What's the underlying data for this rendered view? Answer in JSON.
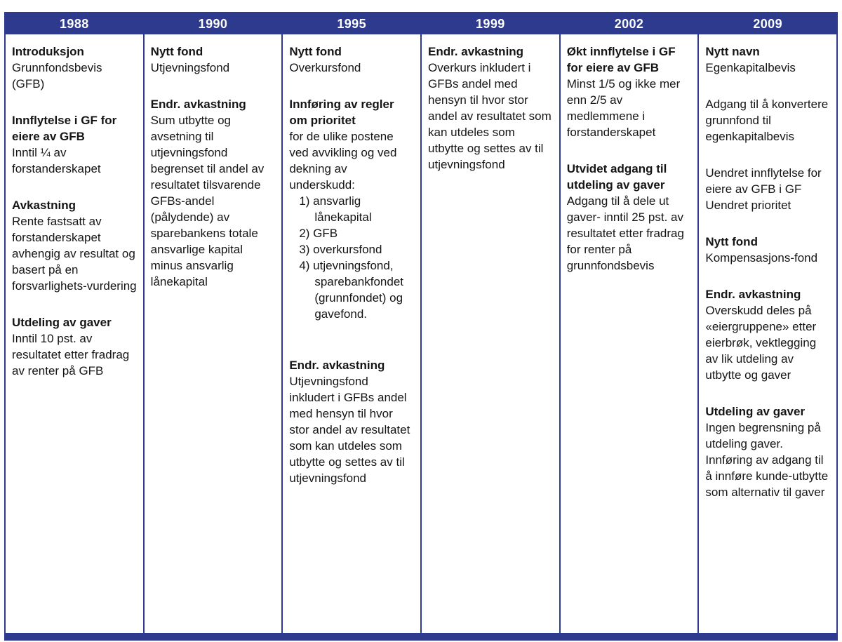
{
  "figure": {
    "accent_color": "#2d3a8e",
    "header_text_color": "#ffffff",
    "columns": [
      {
        "year": "1988",
        "blocks": [
          {
            "heading": "Introduksjon",
            "body": [
              "Grunnfondsbevis (GFB)"
            ]
          },
          {
            "heading": "Innflytelse i GF for eiere av GFB",
            "body": [
              "Inntil ¼ av forstanderskapet"
            ]
          },
          {
            "heading": "Avkastning",
            "body": [
              "Rente fastsatt av forstanderskapet avhengig av resultat og basert på en forsvarlighets-vurdering"
            ]
          },
          {
            "heading": "Utdeling av gaver",
            "body": [
              "Inntil 10 pst. av resultatet etter fradrag av renter på GFB"
            ]
          }
        ]
      },
      {
        "year": "1990",
        "blocks": [
          {
            "heading": "Nytt fond",
            "body": [
              "Utjevningsfond"
            ]
          },
          {
            "heading": "Endr. avkastning",
            "body": [
              "Sum utbytte og avsetning til utjevningsfond begrenset til andel av resultatet tilsvarende GFBs-andel (pålydende) av sparebankens totale ansvarlige kapital minus ansvarlig lånekapital"
            ]
          }
        ]
      },
      {
        "year": "1995",
        "blocks": [
          {
            "heading": "Nytt fond",
            "body": [
              "Overkursfond"
            ]
          },
          {
            "heading": "Innføring av regler om prioritet",
            "body": [
              "for de ulike postene ved avvikling og ved dekning av underskudd:"
            ],
            "list": [
              "1) ansvarlig lånekapital",
              "2) GFB",
              "3) overkursfond",
              "4) utjevningsfond, sparebankfondet (grunnfondet) og gavefond."
            ]
          },
          {
            "heading": "Endr. avkastning",
            "gap": "xl",
            "body": [
              "Utjevningsfond inkludert i GFBs andel med hensyn til hvor stor andel av resultatet som kan utdeles som utbytte og settes av til utjevningsfond"
            ]
          }
        ]
      },
      {
        "year": "1999",
        "blocks": [
          {
            "heading": "Endr. avkastning",
            "body": [
              "Overkurs inkludert i GFBs andel med hensyn til hvor stor andel av resultatet som kan utdeles som utbytte og settes av til utjevningsfond"
            ]
          }
        ]
      },
      {
        "year": "2002",
        "blocks": [
          {
            "heading": "Økt innflytelse i GF for eiere av GFB",
            "body": [
              "Minst 1/5 og ikke mer enn 2/5 av medlemmene i forstanderskapet"
            ]
          },
          {
            "heading": "Utvidet adgang til utdeling av gaver",
            "gap": "lg",
            "body": [
              "Adgang til å dele ut gaver- inntil 25 pst. av resultatet etter fradrag for renter på grunnfondsbevis"
            ]
          }
        ]
      },
      {
        "year": "2009",
        "blocks": [
          {
            "heading": "Nytt navn",
            "body": [
              "Egenkapitalbevis"
            ]
          },
          {
            "body": [
              "Adgang til å konvertere grunnfond til egenkapitalbevis"
            ]
          },
          {
            "body": [
              "Uendret innflytelse for eiere av GFB i GF",
              "Uendret prioritet"
            ]
          },
          {
            "heading": "Nytt fond",
            "body": [
              "Kompensasjons-fond"
            ]
          },
          {
            "heading": "Endr. avkastning",
            "body": [
              "Overskudd deles på «eiergruppene» etter eierbrøk, vektlegging av lik utdeling av utbytte og gaver"
            ]
          },
          {
            "heading": "Utdeling av gaver",
            "gap": "lg",
            "body": [
              "Ingen begrensning på utdeling gaver. Innføring av adgang til å innføre kunde-utbytte som alternativ til gaver"
            ]
          }
        ]
      }
    ]
  }
}
